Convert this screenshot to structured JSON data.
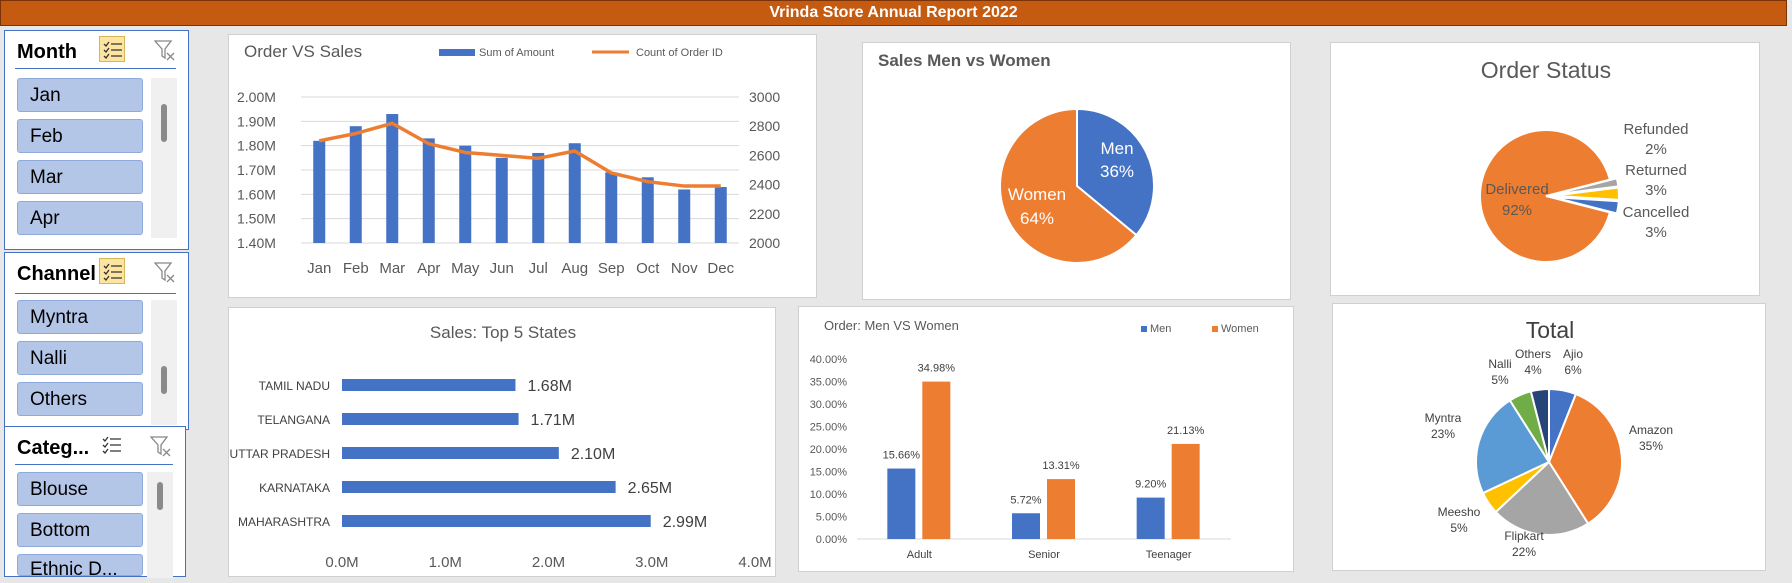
{
  "banner": {
    "title": "Vrinda Store Annual Report 2022"
  },
  "colors": {
    "banner": "#c55a11",
    "blue": "#4472c4",
    "orange": "#ed7d31",
    "gray": "#a5a5a5",
    "yellow": "#ffc000",
    "lightblue": "#5b9bd5",
    "green": "#70ad47",
    "navy": "#264478"
  },
  "slicers": {
    "month": {
      "title": "Month",
      "items": [
        "Jan",
        "Feb",
        "Mar",
        "Apr"
      ]
    },
    "channel": {
      "title": "Channel",
      "items": [
        "Myntra",
        "Nalli",
        "Others"
      ]
    },
    "category": {
      "title": "Categ...",
      "items": [
        "Blouse",
        "Bottom",
        "Ethnic D..."
      ]
    }
  },
  "chart_data": [
    {
      "type": "bar+line",
      "title": "Order VS Sales",
      "categories": [
        "Jan",
        "Feb",
        "Mar",
        "Apr",
        "May",
        "Jun",
        "Jul",
        "Aug",
        "Sep",
        "Oct",
        "Nov",
        "Dec"
      ],
      "series": [
        {
          "name": "Sum of Amount",
          "type": "bar",
          "axis": "left",
          "values": [
            1.82,
            1.88,
            1.93,
            1.83,
            1.8,
            1.75,
            1.77,
            1.81,
            1.69,
            1.67,
            1.62,
            1.63
          ]
        },
        {
          "name": "Count of Order ID",
          "type": "line",
          "axis": "right",
          "values": [
            2700,
            2750,
            2820,
            2680,
            2620,
            2600,
            2580,
            2630,
            2480,
            2420,
            2390,
            2390
          ]
        }
      ],
      "yticks_left": [
        "2.00M",
        "1.90M",
        "1.80M",
        "1.70M",
        "1.60M",
        "1.50M",
        "1.40M"
      ],
      "ylim_left": [
        1.4,
        2.0
      ],
      "yticks_right": [
        "3000",
        "2800",
        "2600",
        "2400",
        "2200",
        "2000"
      ],
      "ylim_right": [
        2000,
        3000
      ],
      "legend": "top"
    },
    {
      "type": "pie",
      "title": "Sales Men vs Women",
      "slices": [
        {
          "label": "Men",
          "value": 36,
          "text": "36%",
          "color": "#4472c4"
        },
        {
          "label": "Women",
          "value": 64,
          "text": "64%",
          "color": "#ed7d31"
        }
      ]
    },
    {
      "type": "pie",
      "title": "Order Status",
      "slices": [
        {
          "label": "Delivered",
          "value": 92,
          "text": "92%",
          "color": "#ed7d31"
        },
        {
          "label": "Refunded",
          "value": 2,
          "text": "2%",
          "color": "#a5a5a5"
        },
        {
          "label": "Returned",
          "value": 3,
          "text": "3%",
          "color": "#ffc000"
        },
        {
          "label": "Cancelled",
          "value": 3,
          "text": "3%",
          "color": "#4472c4"
        }
      ]
    },
    {
      "type": "bar",
      "orientation": "horizontal",
      "title": "Sales: Top 5 States",
      "categories": [
        "TAMIL NADU",
        "TELANGANA",
        "UTTAR PRADESH",
        "KARNATAKA",
        "MAHARASHTRA"
      ],
      "values": [
        1.68,
        1.71,
        2.1,
        2.65,
        2.99
      ],
      "labels": [
        "1.68M",
        "1.71M",
        "2.10M",
        "2.65M",
        "2.99M"
      ],
      "xticks": [
        "0.0M",
        "1.0M",
        "2.0M",
        "3.0M",
        "4.0M"
      ],
      "xlim": [
        0,
        4
      ]
    },
    {
      "type": "bar",
      "title": "Order: Men VS Women",
      "categories": [
        "Adult",
        "Senior",
        "Teenager"
      ],
      "series": [
        {
          "name": "Men",
          "values": [
            15.66,
            5.72,
            9.2
          ],
          "labels": [
            "15.66%",
            "5.72%",
            "9.20%"
          ]
        },
        {
          "name": "Women",
          "values": [
            34.98,
            13.31,
            21.13
          ],
          "labels": [
            "34.98%",
            "13.31%",
            "21.13%"
          ]
        }
      ],
      "yticks": [
        "40.00%",
        "35.00%",
        "30.00%",
        "25.00%",
        "20.00%",
        "15.00%",
        "10.00%",
        "5.00%",
        "0.00%"
      ],
      "ylim": [
        0,
        40
      ],
      "legend": "top-right"
    },
    {
      "type": "pie",
      "title": "Total",
      "slices": [
        {
          "label": "Ajio",
          "value": 6,
          "text": "6%",
          "color": "#4472c4"
        },
        {
          "label": "Amazon",
          "value": 35,
          "text": "35%",
          "color": "#ed7d31"
        },
        {
          "label": "Flipkart",
          "value": 22,
          "text": "22%",
          "color": "#a5a5a5"
        },
        {
          "label": "Meesho",
          "value": 5,
          "text": "5%",
          "color": "#ffc000"
        },
        {
          "label": "Myntra",
          "value": 23,
          "text": "23%",
          "color": "#5b9bd5"
        },
        {
          "label": "Nalli",
          "value": 5,
          "text": "5%",
          "color": "#70ad47"
        },
        {
          "label": "Others",
          "value": 4,
          "text": "4%",
          "color": "#264478"
        }
      ]
    }
  ]
}
